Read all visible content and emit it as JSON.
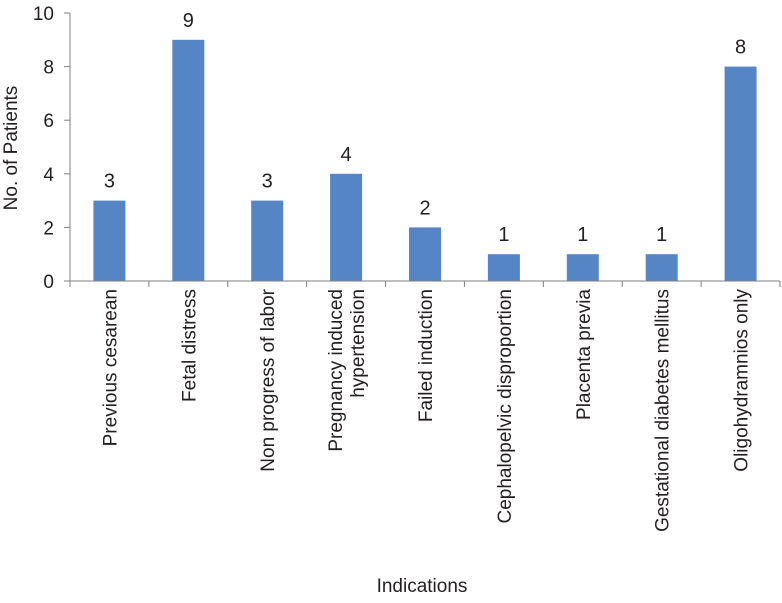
{
  "chart_data": {
    "type": "bar",
    "title": "",
    "xlabel": "Indications",
    "ylabel": "No. of Patients",
    "ylim": [
      0,
      10
    ],
    "yticks": [
      0,
      2,
      4,
      6,
      8,
      10
    ],
    "grid": false,
    "legend": "none",
    "bar_color": "#5585c5",
    "categories": [
      [
        "Previous cesarean"
      ],
      [
        "Fetal distress"
      ],
      [
        "Non progress of labor"
      ],
      [
        "Pregnancy induced",
        "hypertension"
      ],
      [
        "Failed induction"
      ],
      [
        "Cephalopelvic disproportion"
      ],
      [
        "Placenta previa"
      ],
      [
        "Gestational diabetes mellitus"
      ],
      [
        "Oligohydramnios only"
      ]
    ],
    "values": [
      3,
      9,
      3,
      4,
      2,
      1,
      1,
      1,
      8
    ],
    "data_labels": [
      "3",
      "9",
      "3",
      "4",
      "2",
      "1",
      "1",
      "1",
      "8"
    ]
  }
}
